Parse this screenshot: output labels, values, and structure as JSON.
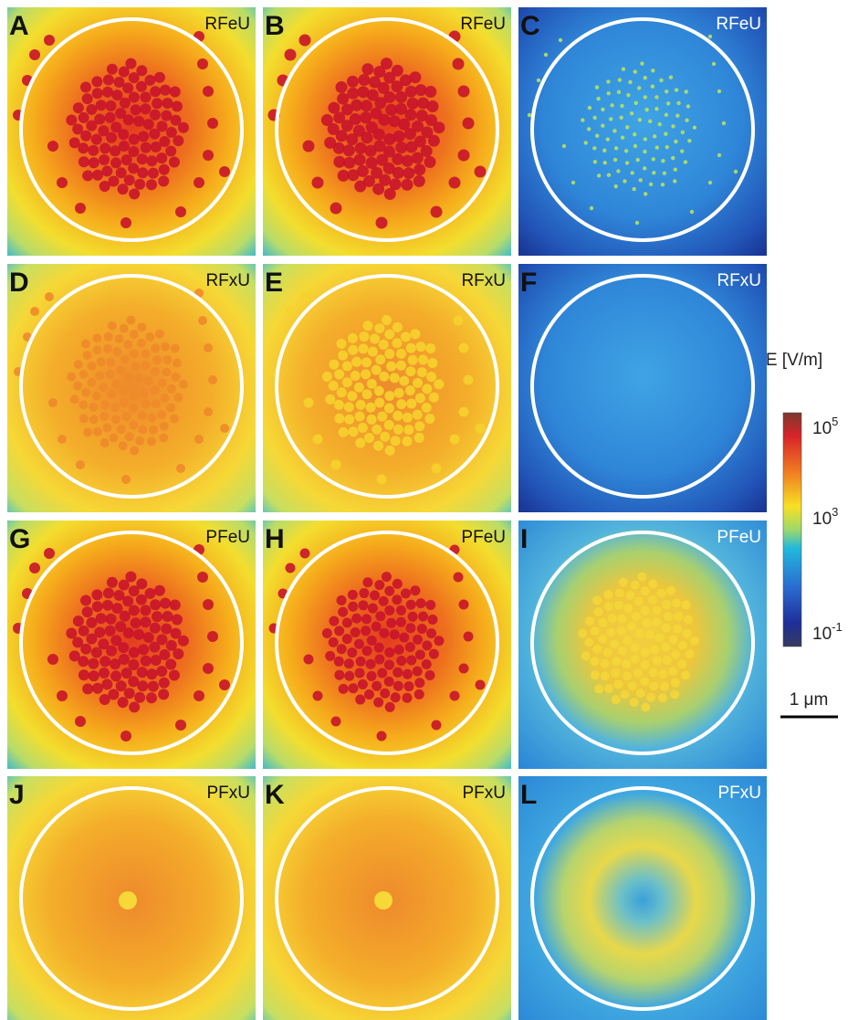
{
  "panels": [
    {
      "letter": "A",
      "label": "RFeU"
    },
    {
      "letter": "B",
      "label": "RFeU"
    },
    {
      "letter": "C",
      "label": "RFeU"
    },
    {
      "letter": "D",
      "label": "RFxU"
    },
    {
      "letter": "E",
      "label": "RFxU"
    },
    {
      "letter": "F",
      "label": "RFxU"
    },
    {
      "letter": "G",
      "label": "PFeU"
    },
    {
      "letter": "H",
      "label": "PFeU"
    },
    {
      "letter": "I",
      "label": "PFeU"
    },
    {
      "letter": "J",
      "label": "PFxU"
    },
    {
      "letter": "K",
      "label": "PFxU"
    },
    {
      "letter": "L",
      "label": "PFxU"
    }
  ],
  "colorbar": {
    "title": "E [V/m]",
    "ticks": [
      {
        "base": "10",
        "exponent": "5"
      },
      {
        "base": "10",
        "exponent": "3"
      },
      {
        "base": "10",
        "exponent": "-1"
      }
    ]
  },
  "scale_bar": {
    "label": "1 μm"
  }
}
